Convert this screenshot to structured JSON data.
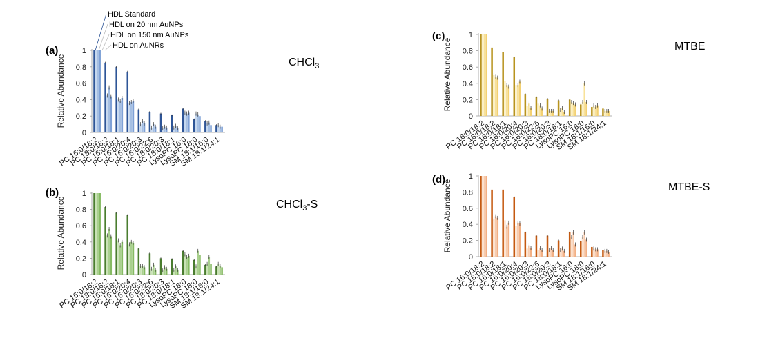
{
  "legend": [
    "HDL Standard",
    "HDL on 20 nm AuNPs",
    "HDL on 150 nm AuNPs",
    "HDL on AuNRs"
  ],
  "chart_data": [
    {
      "type": "bar",
      "panel_label": "(a)",
      "title": "CHCl",
      "title_sub": "3",
      "title_suffix": "",
      "ylabel": "Relative Abundance",
      "ylim": [
        0,
        1
      ],
      "yticks": [
        "0",
        "0.2",
        "0.4",
        "0.6",
        "0.8",
        "1"
      ],
      "colors": [
        "#2e5597",
        "#c6d8ef",
        "#a5bfe3",
        "#7fa1d6"
      ],
      "categories": [
        "PC 16:0/18:2",
        "PC 18:0/18:2",
        "PC 16:0/18:1",
        "PC 16:0/20:4",
        "PC 16:0/20:3",
        "PC 16:0/22:6",
        "PC 18:0/20:3",
        "PC 18:0/18:1",
        "LysoPC 16:0",
        "LysoPC 18:0",
        "SM 18:1/16:0",
        "SM 18:1/24:1"
      ],
      "series": [
        {
          "name": "HDL Standard",
          "values": [
            1,
            0.85,
            0.8,
            0.74,
            0.28,
            0.25,
            0.23,
            0.21,
            0.29,
            0.16,
            0.14,
            0.09
          ]
        },
        {
          "name": "HDL on 20 nm AuNPs",
          "values": [
            1,
            0.45,
            0.4,
            0.36,
            0.1,
            0.06,
            0.05,
            0.06,
            0.24,
            0.23,
            0.11,
            0.09
          ]
        },
        {
          "name": "HDL on 150 nm AuNPs",
          "values": [
            1,
            0.55,
            0.38,
            0.37,
            0.14,
            0.1,
            0.07,
            0.08,
            0.23,
            0.22,
            0.12,
            0.07
          ]
        },
        {
          "name": "HDL on AuNRs",
          "values": [
            1,
            0.44,
            0.42,
            0.38,
            0.11,
            0.07,
            0.06,
            0.05,
            0.24,
            0.2,
            0.09,
            0.07
          ]
        }
      ]
    },
    {
      "type": "bar",
      "panel_label": "(b)",
      "title": "CHCl",
      "title_sub": "3",
      "title_suffix": "-S",
      "ylabel": "Relative Abundance",
      "ylim": [
        0,
        1
      ],
      "yticks": [
        "0",
        "0.2",
        "0.4",
        "0.6",
        "0.8",
        "1"
      ],
      "colors": [
        "#4a7d2f",
        "#c9e2b6",
        "#a9d08e",
        "#86bb63"
      ],
      "categories": [
        "PC 16:0/18:2",
        "PC 18:0/18:2",
        "PC 16:0/18:1",
        "PC 16:0/20:4",
        "PC 16:0/20:3",
        "PC 16:0/22:6",
        "PC 18:0/20:3",
        "PC 18:0/18:1",
        "LysoPC 16:0",
        "LysoPC 18:0",
        "SM 18:1/16:0",
        "SM 18:1/24:1"
      ],
      "series": [
        {
          "name": "HDL Standard",
          "values": [
            1,
            0.83,
            0.76,
            0.73,
            0.32,
            0.26,
            0.2,
            0.19,
            0.29,
            0.18,
            0.12,
            0.1
          ]
        },
        {
          "name": "HDL on 20 nm AuNPs",
          "values": [
            1,
            0.48,
            0.42,
            0.37,
            0.11,
            0.07,
            0.05,
            0.06,
            0.25,
            0.1,
            0.13,
            0.13
          ]
        },
        {
          "name": "HDL on 150 nm AuNPs",
          "values": [
            1,
            0.56,
            0.36,
            0.4,
            0.11,
            0.12,
            0.09,
            0.1,
            0.22,
            0.29,
            0.22,
            0.11
          ]
        },
        {
          "name": "HDL on AuNRs",
          "values": [
            1,
            0.47,
            0.4,
            0.39,
            0.09,
            0.06,
            0.07,
            0.06,
            0.23,
            0.24,
            0.13,
            0.09
          ]
        }
      ]
    },
    {
      "type": "bar",
      "panel_label": "(c)",
      "title": "MTBE",
      "title_sub": "",
      "title_suffix": "",
      "ylabel": "Relative Abundance",
      "ylim": [
        0,
        1
      ],
      "yticks": [
        "0",
        "0.2",
        "0.4",
        "0.6",
        "0.8",
        "1"
      ],
      "colors": [
        "#b8941f",
        "#fbefc4",
        "#f8e29a",
        "#f3d173"
      ],
      "categories": [
        "PC 16:0/18:2",
        "PC 18:0/18:2",
        "PC 16:0/18:1",
        "PC 16:0/20:4",
        "PC 16:0/20:3",
        "PC 16:0/22:6",
        "PC 18:0/20:3",
        "PC 18:0/18:1",
        "LysoPC 16:0",
        "LysoPC 18:0",
        "SM 18:1/16:0",
        "SM 18:1/24:1"
      ],
      "series": [
        {
          "name": "HDL Standard",
          "values": [
            1,
            0.84,
            0.78,
            0.72,
            0.27,
            0.23,
            0.21,
            0.19,
            0.2,
            0.14,
            0.11,
            0.09
          ]
        },
        {
          "name": "HDL on 20 nm AuNPs",
          "values": [
            1,
            0.5,
            0.43,
            0.38,
            0.12,
            0.15,
            0.06,
            0.07,
            0.17,
            0.17,
            0.13,
            0.06
          ]
        },
        {
          "name": "HDL on 150 nm AuNPs",
          "values": [
            1,
            0.48,
            0.38,
            0.38,
            0.15,
            0.13,
            0.06,
            0.1,
            0.16,
            0.4,
            0.11,
            0.06
          ]
        },
        {
          "name": "HDL on AuNRs",
          "values": [
            1,
            0.47,
            0.36,
            0.42,
            0.1,
            0.09,
            0.06,
            0.05,
            0.14,
            0.17,
            0.13,
            0.06
          ]
        }
      ]
    },
    {
      "type": "bar",
      "panel_label": "(d)",
      "title": "MTBE-S",
      "title_sub": "",
      "title_suffix": "",
      "ylabel": "Relative Abundance",
      "ylim": [
        0,
        1
      ],
      "yticks": [
        "0",
        "0.2",
        "0.4",
        "0.6",
        "0.8",
        "1"
      ],
      "colors": [
        "#c55a11",
        "#fbe0cc",
        "#f8cbad",
        "#f2b085"
      ],
      "categories": [
        "PC 16:0/18:2",
        "PC 18:0/18:2",
        "PC 16:0/18:1",
        "PC 16:0/20:4",
        "PC 16:0/20:3",
        "PC 16:0/22:6",
        "PC 18:0/20:3",
        "PC 18:0/18:1",
        "LysoPC 16:0",
        "LysoPC 18:0",
        "SM 18:1/16:0",
        "SM 18:1/24:1"
      ],
      "series": [
        {
          "name": "HDL Standard",
          "values": [
            1,
            0.83,
            0.83,
            0.74,
            0.3,
            0.26,
            0.26,
            0.2,
            0.3,
            0.19,
            0.12,
            0.08
          ]
        },
        {
          "name": "HDL on 20 nm AuNPs",
          "values": [
            1,
            0.46,
            0.45,
            0.38,
            0.1,
            0.08,
            0.08,
            0.08,
            0.24,
            0.24,
            0.1,
            0.07
          ]
        },
        {
          "name": "HDL on 150 nm AuNPs",
          "values": [
            1,
            0.5,
            0.37,
            0.42,
            0.14,
            0.11,
            0.11,
            0.1,
            0.3,
            0.3,
            0.09,
            0.07
          ]
        },
        {
          "name": "HDL on AuNRs",
          "values": [
            1,
            0.48,
            0.42,
            0.41,
            0.11,
            0.08,
            0.08,
            0.07,
            0.15,
            0.21,
            0.09,
            0.06
          ]
        }
      ]
    }
  ]
}
